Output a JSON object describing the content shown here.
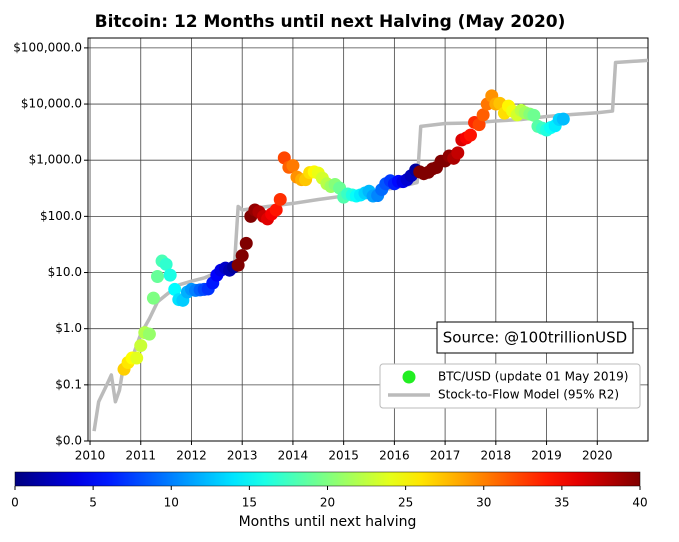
{
  "chart_data": {
    "type": "scatter",
    "title": "Bitcoin: 12 Months until next Halving (May 2020)",
    "annotation": "Source: @100trillionUSD",
    "log_y": true,
    "grid": true,
    "xlim": [
      2009.96,
      2021.0
    ],
    "xticks": [
      2010,
      2011,
      2012,
      2013,
      2014,
      2015,
      2016,
      2017,
      2018,
      2019,
      2020
    ],
    "ylim": [
      0.01,
      150000
    ],
    "yticks": [
      {
        "value": 0.01,
        "label": "$0.0"
      },
      {
        "value": 0.1,
        "label": "$0.1"
      },
      {
        "value": 1,
        "label": "$1.0"
      },
      {
        "value": 10,
        "label": "$10.0"
      },
      {
        "value": 100,
        "label": "$100.0"
      },
      {
        "value": 1000,
        "label": "$1,000.0"
      },
      {
        "value": 10000,
        "label": "$10,000.0"
      },
      {
        "value": 100000,
        "label": "$100,000.0"
      }
    ],
    "clim": [
      0,
      40
    ],
    "cticks": [
      0,
      5,
      10,
      15,
      20,
      25,
      30,
      35,
      40
    ],
    "colorbar_label": "Months until next halving",
    "colormap": "jet",
    "legend": "lower right",
    "series": [
      {
        "name": "BTC/USD (update 01 May 2019)",
        "color": "#22ee22",
        "x": [
          2010.67,
          2010.75,
          2010.83,
          2010.92,
          2011.0,
          2011.08,
          2011.17,
          2011.25,
          2011.33,
          2011.42,
          2011.5,
          2011.58,
          2011.67,
          2011.75,
          2011.83,
          2011.92,
          2012.0,
          2012.08,
          2012.17,
          2012.25,
          2012.33,
          2012.42,
          2012.5,
          2012.58,
          2012.67,
          2012.75,
          2012.83,
          2012.92,
          2013.0,
          2013.08,
          2013.17,
          2013.25,
          2013.33,
          2013.42,
          2013.5,
          2013.58,
          2013.67,
          2013.75,
          2013.83,
          2013.92,
          2014.0,
          2014.08,
          2014.17,
          2014.25,
          2014.33,
          2014.42,
          2014.5,
          2014.58,
          2014.67,
          2014.75,
          2014.83,
          2014.92,
          2015.0,
          2015.08,
          2015.17,
          2015.25,
          2015.33,
          2015.42,
          2015.5,
          2015.58,
          2015.67,
          2015.75,
          2015.83,
          2015.92,
          2016.0,
          2016.08,
          2016.17,
          2016.25,
          2016.33,
          2016.42,
          2016.5,
          2016.58,
          2016.67,
          2016.75,
          2016.83,
          2016.92,
          2017.0,
          2017.08,
          2017.17,
          2017.25,
          2017.33,
          2017.42,
          2017.5,
          2017.58,
          2017.67,
          2017.75,
          2017.83,
          2017.92,
          2018.0,
          2018.08,
          2018.17,
          2018.25,
          2018.33,
          2018.42,
          2018.5,
          2018.58,
          2018.67,
          2018.75,
          2018.83,
          2018.92,
          2019.0,
          2019.08,
          2019.17,
          2019.25,
          2019.33
        ],
        "values": [
          0.19,
          0.25,
          0.3,
          0.3,
          0.5,
          0.85,
          0.8,
          3.5,
          8.5,
          16,
          14,
          9,
          5,
          3.3,
          3.2,
          4.5,
          5.0,
          4.8,
          4.9,
          5.0,
          5.1,
          6.5,
          9,
          11,
          12,
          11,
          12.5,
          13.5,
          20,
          33,
          100,
          130,
          120,
          100,
          90,
          110,
          130,
          200,
          1100,
          750,
          800,
          500,
          450,
          450,
          600,
          620,
          590,
          480,
          380,
          340,
          370,
          320,
          220,
          250,
          240,
          230,
          240,
          260,
          280,
          230,
          235,
          300,
          380,
          430,
          380,
          420,
          415,
          450,
          530,
          670,
          620,
          575,
          610,
          700,
          740,
          960,
          970,
          1190,
          1080,
          1350,
          2300,
          2500,
          2800,
          4700,
          4300,
          6400,
          10000,
          14000,
          10000,
          10300,
          6900,
          9200,
          7500,
          6400,
          7700,
          7000,
          6600,
          6300,
          4000,
          3700,
          3450,
          3800,
          4100,
          5300,
          5400
        ],
        "c": [
          26.9,
          25.9,
          25.0,
          23.9,
          22.9,
          22.0,
          20.9,
          19.9,
          19.0,
          17.9,
          16.9,
          16.0,
          14.9,
          13.9,
          13.0,
          11.9,
          10.9,
          10.0,
          8.9,
          7.9,
          7.0,
          5.9,
          4.9,
          4.0,
          2.9,
          1.9,
          1.0,
          43.2,
          42.2,
          41.3,
          40.2,
          39.2,
          38.3,
          37.2,
          36.2,
          35.3,
          34.2,
          33.2,
          32.3,
          31.2,
          30.2,
          29.3,
          28.2,
          27.2,
          26.3,
          25.2,
          24.2,
          23.3,
          22.2,
          21.2,
          20.3,
          19.2,
          18.2,
          17.3,
          16.2,
          15.2,
          14.3,
          13.2,
          12.2,
          11.3,
          10.2,
          9.2,
          8.3,
          7.2,
          6.2,
          5.3,
          4.2,
          3.2,
          2.3,
          1.2,
          46.3,
          45.4,
          44.3,
          43.3,
          42.4,
          41.3,
          40.3,
          39.4,
          38.3,
          37.3,
          36.4,
          35.3,
          34.3,
          33.4,
          32.3,
          31.3,
          30.4,
          29.3,
          28.3,
          27.4,
          26.3,
          25.3,
          24.4,
          23.3,
          22.3,
          21.4,
          20.3,
          19.3,
          18.4,
          17.3,
          16.3,
          15.4,
          14.3,
          13.3,
          12.4
        ]
      },
      {
        "name": "Stock-to-Flow Model (95% R2)",
        "color": "#bbbbbb",
        "type": "line",
        "x": [
          2010.08,
          2010.17,
          2010.33,
          2010.42,
          2010.5,
          2010.58,
          2010.67,
          2010.83,
          2011.0,
          2011.17,
          2011.33,
          2011.5,
          2011.75,
          2012.0,
          2012.25,
          2012.5,
          2012.75,
          2012.85,
          2012.92,
          2013.0,
          2013.5,
          2014.0,
          2014.5,
          2015.0,
          2015.5,
          2016.0,
          2016.45,
          2016.52,
          2017.0,
          2017.5,
          2018.0,
          2018.5,
          2019.0,
          2019.5,
          2020.0,
          2020.3,
          2020.36,
          2021.0
        ],
        "values": [
          0.015,
          0.05,
          0.1,
          0.15,
          0.05,
          0.08,
          0.25,
          0.3,
          0.8,
          1.5,
          3,
          4,
          6,
          7,
          8,
          10,
          12,
          15,
          150,
          130,
          150,
          170,
          200,
          230,
          270,
          320,
          400,
          4000,
          4500,
          4600,
          5000,
          5300,
          6000,
          6500,
          7000,
          7500,
          55000,
          60000
        ]
      }
    ]
  }
}
